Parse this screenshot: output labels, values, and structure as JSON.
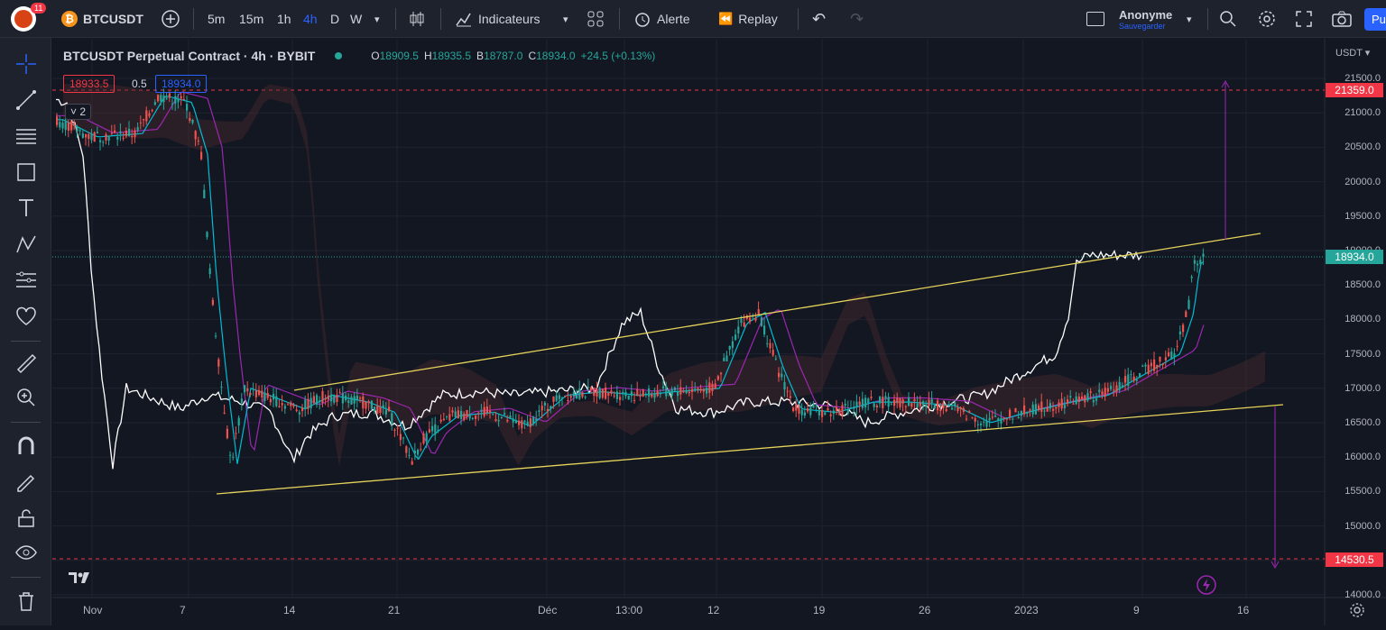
{
  "topbar": {
    "notif_count": "11",
    "symbol": "BTCUSDT",
    "timeframes": [
      "5m",
      "15m",
      "1h",
      "4h",
      "D",
      "W"
    ],
    "active_timeframe": "4h",
    "indicators_label": "Indicateurs",
    "alert_label": "Alerte",
    "replay_label": "Replay",
    "user_name": "Anonyme",
    "user_sub": "Sauvegarder",
    "publish_label": "Pu"
  },
  "legend": {
    "title": "BTCUSDT Perpetual Contract · 4h · BYBIT",
    "o_label": "O",
    "o_value": "18909.5",
    "h_label": "H",
    "h_value": "18935.5",
    "b_label": "B",
    "b_value": "18787.0",
    "c_label": "C",
    "c_value": "18934.0",
    "change": "+24.5 (+0.13%)",
    "sell_price": "18933.5",
    "spread": "0.5",
    "buy_price": "18934.0",
    "collapse_count": "2"
  },
  "axis": {
    "currency": "USDT",
    "price_labels": [
      "21500.0",
      "21000.0",
      "20500.0",
      "20000.0",
      "19500.0",
      "19000.0",
      "18500.0",
      "18000.0",
      "17500.0",
      "17000.0",
      "16500.0",
      "16000.0",
      "15500.0",
      "15000.0",
      "14500.0",
      "14000.0"
    ],
    "upper_line_label": "21359.0",
    "current_price_label": "18934.0",
    "lower_line_label": "14530.5",
    "time_labels": [
      "Nov",
      "7",
      "14",
      "21",
      "Déc",
      "13:00",
      "12",
      "19",
      "26",
      "2023",
      "9",
      "16"
    ]
  },
  "colors": {
    "up": "#26a69a",
    "down": "#ef5350",
    "accent": "#2962ff",
    "wedge": "#e6d35a",
    "measure": "#9c27b0",
    "level_line": "#f23645",
    "background": "#131722"
  },
  "icons": [
    "crosshair-icon",
    "trendline-icon",
    "fib-icon",
    "rectangle-icon",
    "text-icon",
    "pattern-icon",
    "measure-tools-icon",
    "heart-icon",
    "ruler-icon",
    "zoom-in-icon",
    "magnet-icon",
    "pencil-lock-icon",
    "lock-icon",
    "eye-icon",
    "trash-icon"
  ]
}
